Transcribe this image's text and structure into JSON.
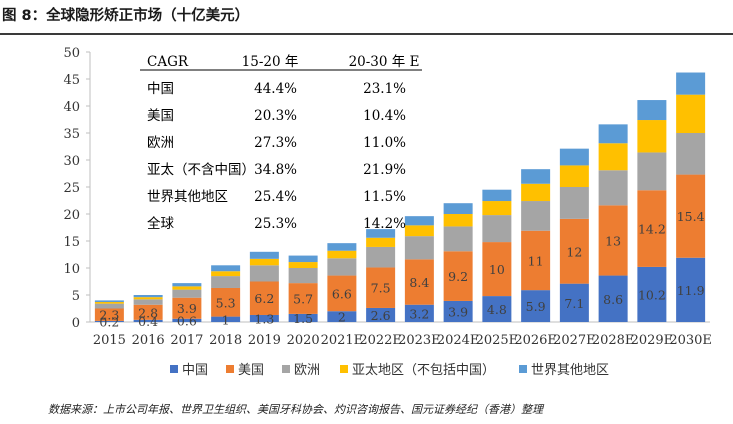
{
  "figure": {
    "title": "图 8：全球隐形矫正市场（十亿美元）",
    "source": "数据来源：上市公司年报、世界卫生组织、美国牙科协会、灼识咨询报告、国元证券经纪（香港）整理"
  },
  "chart_data": {
    "type": "bar",
    "stacked": true,
    "categories": [
      "2015",
      "2016",
      "2017",
      "2018",
      "2019",
      "2020",
      "2021E",
      "2022E",
      "2023E",
      "2024E",
      "2025E",
      "2026E",
      "2027E",
      "2028E",
      "2029E",
      "2030E"
    ],
    "ylim": [
      0,
      50
    ],
    "yticks": [
      0,
      5,
      10,
      15,
      20,
      25,
      30,
      35,
      40,
      45,
      50
    ],
    "xlabel": "",
    "ylabel": "",
    "grid": false,
    "legend_position": "bottom",
    "series": [
      {
        "name": "中国",
        "color": "#4472C4",
        "values": [
          0.2,
          0.4,
          0.6,
          1,
          1.3,
          1.5,
          2,
          2.6,
          3.2,
          3.9,
          4.8,
          5.9,
          7.1,
          8.6,
          10.2,
          11.9
        ],
        "labels": [
          "0.2",
          "0.4",
          "0.6",
          "1",
          "1.3",
          "1.5",
          "2",
          "2.6",
          "3.2",
          "3.9",
          "4.8",
          "5.9",
          "7.1",
          "8.6",
          "10.2",
          "11.9"
        ]
      },
      {
        "name": "美国",
        "color": "#ED7D31",
        "values": [
          2.3,
          2.8,
          3.9,
          5.3,
          6.2,
          5.7,
          6.6,
          7.5,
          8.4,
          9.2,
          10,
          11,
          12,
          13,
          14.2,
          15.4
        ],
        "labels": [
          "2.3",
          "2.8",
          "3.9",
          "5.3",
          "6.2",
          "5.7",
          "6.6",
          "7.5",
          "8.4",
          "9.2",
          "10",
          "11",
          "12",
          "13",
          "14.2",
          "15.4"
        ]
      },
      {
        "name": "欧洲",
        "color": "#A5A5A5",
        "values": [
          0.9,
          1.0,
          1.5,
          2.2,
          3.0,
          2.8,
          3.2,
          3.8,
          4.3,
          4.6,
          5.0,
          5.5,
          5.9,
          6.5,
          7.0,
          7.7
        ]
      },
      {
        "name": "亚太地区（不包括中国）",
        "color": "#FFC000",
        "values": [
          0.3,
          0.4,
          0.6,
          0.9,
          1.2,
          1.1,
          1.4,
          1.7,
          2.0,
          2.3,
          2.6,
          3.2,
          4.0,
          5.0,
          6.0,
          7.1
        ]
      },
      {
        "name": "世界其他地区",
        "color": "#5B9BD5",
        "values": [
          0.3,
          0.4,
          0.6,
          1.1,
          1.3,
          1.2,
          1.4,
          1.6,
          1.7,
          2.0,
          2.1,
          2.7,
          3.1,
          3.5,
          3.7,
          4.1
        ]
      }
    ],
    "cagr_table": {
      "headers": [
        "CAGR",
        "15-20 年",
        "20-30 年 E"
      ],
      "rows": [
        [
          "中国",
          "44.4%",
          "23.1%"
        ],
        [
          "美国",
          "20.3%",
          "10.4%"
        ],
        [
          "欧洲",
          "27.3%",
          "11.0%"
        ],
        [
          "亚太（不含中国）",
          "34.8%",
          "21.9%"
        ],
        [
          "世界其他地区",
          "25.4%",
          "11.5%"
        ],
        [
          "全球",
          "25.3%",
          "14.2%"
        ]
      ]
    }
  }
}
